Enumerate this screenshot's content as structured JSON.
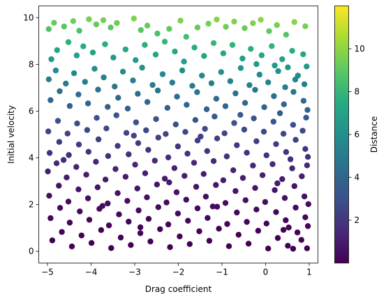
{
  "chart_data": {
    "type": "scatter",
    "xlabel": "Drag coefficient",
    "ylabel": "Initial velocity",
    "colorbar_label": "Distance",
    "colormap": "viridis",
    "xlim": [
      -5.2,
      1.2
    ],
    "ylim": [
      -0.5,
      10.5
    ],
    "clim": [
      0,
      12
    ],
    "x_ticks": [
      -5,
      -4,
      -3,
      -2,
      -1,
      0,
      1
    ],
    "x_tick_labels": [
      "−5",
      "−4",
      "−3",
      "−2",
      "−1",
      "0",
      "1"
    ],
    "y_ticks": [
      0,
      2,
      4,
      6,
      8,
      10
    ],
    "y_tick_labels": [
      "0",
      "2",
      "4",
      "6",
      "8",
      "10"
    ],
    "colorbar_ticks": [
      2,
      4,
      6,
      8,
      10
    ],
    "colorbar_tick_labels": [
      "2",
      "4",
      "6",
      "8",
      "10"
    ],
    "grid": false,
    "legend": "none",
    "marker_color_encodes": "Distance",
    "marker_edge": "none",
    "points": [
      {
        "x": -4.97,
        "y": 9.51
      },
      {
        "x": -4.85,
        "y": 9.78
      },
      {
        "x": -4.62,
        "y": 9.62
      },
      {
        "x": -4.41,
        "y": 9.85
      },
      {
        "x": -4.27,
        "y": 9.44
      },
      {
        "x": -4.05,
        "y": 9.93
      },
      {
        "x": -3.88,
        "y": 9.71
      },
      {
        "x": -3.72,
        "y": 9.89
      },
      {
        "x": -3.55,
        "y": 9.58
      },
      {
        "x": -3.41,
        "y": 9.77
      },
      {
        "x": -3.02,
        "y": 9.96
      },
      {
        "x": -2.86,
        "y": 9.47
      },
      {
        "x": -2.71,
        "y": 9.66
      },
      {
        "x": -2.48,
        "y": 9.32
      },
      {
        "x": -2.21,
        "y": 9.52
      },
      {
        "x": -1.95,
        "y": 9.87
      },
      {
        "x": -1.82,
        "y": 9.18
      },
      {
        "x": -1.56,
        "y": 9.58
      },
      {
        "x": -1.31,
        "y": 9.74
      },
      {
        "x": -1.12,
        "y": 9.92
      },
      {
        "x": -0.91,
        "y": 9.61
      },
      {
        "x": -0.72,
        "y": 9.83
      },
      {
        "x": -0.48,
        "y": 9.55
      },
      {
        "x": -0.29,
        "y": 9.76
      },
      {
        "x": -0.11,
        "y": 9.91
      },
      {
        "x": 0.08,
        "y": 9.42
      },
      {
        "x": 0.26,
        "y": 9.68
      },
      {
        "x": 0.47,
        "y": 9.27
      },
      {
        "x": 0.66,
        "y": 9.81
      },
      {
        "x": 0.91,
        "y": 9.63
      },
      {
        "x": -4.91,
        "y": 8.22
      },
      {
        "x": -4.78,
        "y": 8.61
      },
      {
        "x": -4.52,
        "y": 8.95
      },
      {
        "x": -4.33,
        "y": 8.38
      },
      {
        "x": -4.18,
        "y": 8.77
      },
      {
        "x": -3.96,
        "y": 8.51
      },
      {
        "x": -3.68,
        "y": 8.86
      },
      {
        "x": -3.49,
        "y": 8.29
      },
      {
        "x": -3.21,
        "y": 8.64
      },
      {
        "x": -2.98,
        "y": 8.18
      },
      {
        "x": -2.77,
        "y": 8.83
      },
      {
        "x": -2.52,
        "y": 8.42
      },
      {
        "x": -2.31,
        "y": 8.97
      },
      {
        "x": -2.08,
        "y": 8.55
      },
      {
        "x": -1.87,
        "y": 8.12
      },
      {
        "x": -1.63,
        "y": 8.72
      },
      {
        "x": -1.41,
        "y": 8.36
      },
      {
        "x": -1.19,
        "y": 8.91
      },
      {
        "x": -0.97,
        "y": 8.47
      },
      {
        "x": -0.76,
        "y": 8.83
      },
      {
        "x": -0.53,
        "y": 8.25
      },
      {
        "x": -0.34,
        "y": 8.66
      },
      {
        "x": -0.09,
        "y": 8.39
      },
      {
        "x": 0.14,
        "y": 8.78
      },
      {
        "x": 0.38,
        "y": 8.22
      },
      {
        "x": 0.61,
        "y": 8.58
      },
      {
        "x": 0.86,
        "y": 8.43
      },
      {
        "x": 0.94,
        "y": 7.91
      },
      {
        "x": 0.74,
        "y": 7.52
      },
      {
        "x": 0.51,
        "y": 7.87
      },
      {
        "x": -4.97,
        "y": 7.36
      },
      {
        "x": -4.81,
        "y": 7.74
      },
      {
        "x": -4.58,
        "y": 7.18
      },
      {
        "x": -4.39,
        "y": 7.62
      },
      {
        "x": -4.14,
        "y": 7.25
      },
      {
        "x": -3.92,
        "y": 7.81
      },
      {
        "x": -3.71,
        "y": 7.44
      },
      {
        "x": -3.46,
        "y": 7.05
      },
      {
        "x": -3.27,
        "y": 7.69
      },
      {
        "x": -3.04,
        "y": 7.31
      },
      {
        "x": -2.83,
        "y": 7.86
      },
      {
        "x": -2.59,
        "y": 7.12
      },
      {
        "x": -2.36,
        "y": 7.58
      },
      {
        "x": -2.14,
        "y": 7.22
      },
      {
        "x": -1.91,
        "y": 7.74
      },
      {
        "x": -1.68,
        "y": 7.08
      },
      {
        "x": -1.46,
        "y": 7.52
      },
      {
        "x": -1.24,
        "y": 7.19
      },
      {
        "x": -1.02,
        "y": 7.67
      },
      {
        "x": -0.81,
        "y": 7.28
      },
      {
        "x": -0.57,
        "y": 7.84
      },
      {
        "x": -0.37,
        "y": 7.11
      },
      {
        "x": -0.14,
        "y": 7.56
      },
      {
        "x": 0.06,
        "y": 7.23
      },
      {
        "x": 0.29,
        "y": 7.71
      },
      {
        "x": 0.45,
        "y": 7.02
      },
      {
        "x": 0.68,
        "y": 7.35
      },
      {
        "x": 0.89,
        "y": 7.15
      },
      {
        "x": 0.21,
        "y": 7.95
      },
      {
        "x": -0.21,
        "y": 8.01
      },
      {
        "x": -4.93,
        "y": 6.47
      },
      {
        "x": -4.72,
        "y": 6.85
      },
      {
        "x": -4.49,
        "y": 6.22
      },
      {
        "x": -4.29,
        "y": 6.71
      },
      {
        "x": -4.07,
        "y": 6.33
      },
      {
        "x": -3.84,
        "y": 6.92
      },
      {
        "x": -3.62,
        "y": 6.18
      },
      {
        "x": -3.38,
        "y": 6.57
      },
      {
        "x": -3.16,
        "y": 6.11
      },
      {
        "x": -2.93,
        "y": 6.74
      },
      {
        "x": -2.71,
        "y": 6.39
      },
      {
        "x": -2.47,
        "y": 6.88
      },
      {
        "x": -2.25,
        "y": 6.14
      },
      {
        "x": -2.03,
        "y": 6.62
      },
      {
        "x": -1.81,
        "y": 6.27
      },
      {
        "x": -1.57,
        "y": 6.81
      },
      {
        "x": -1.35,
        "y": 6.08
      },
      {
        "x": -1.13,
        "y": 6.53
      },
      {
        "x": -0.92,
        "y": 6.21
      },
      {
        "x": -0.69,
        "y": 6.76
      },
      {
        "x": -0.47,
        "y": 6.35
      },
      {
        "x": -0.24,
        "y": 6.91
      },
      {
        "x": -0.03,
        "y": 6.17
      },
      {
        "x": 0.19,
        "y": 6.64
      },
      {
        "x": 0.42,
        "y": 6.29
      },
      {
        "x": 0.64,
        "y": 6.82
      },
      {
        "x": 0.87,
        "y": 6.44
      },
      {
        "x": 0.96,
        "y": 6.05
      },
      {
        "x": 0.33,
        "y": 5.91
      },
      {
        "x": -0.58,
        "y": 5.84
      },
      {
        "x": -4.98,
        "y": 5.13
      },
      {
        "x": -4.76,
        "y": 5.58
      },
      {
        "x": -4.54,
        "y": 5.04
      },
      {
        "x": -4.32,
        "y": 5.47
      },
      {
        "x": -4.09,
        "y": 5.19
      },
      {
        "x": -3.87,
        "y": 5.71
      },
      {
        "x": -3.65,
        "y": 5.26
      },
      {
        "x": -3.42,
        "y": 5.82
      },
      {
        "x": -3.19,
        "y": 5.07
      },
      {
        "x": -2.97,
        "y": 5.52
      },
      {
        "x": -2.74,
        "y": 5.18
      },
      {
        "x": -2.51,
        "y": 5.66
      },
      {
        "x": -2.29,
        "y": 5.02
      },
      {
        "x": -2.06,
        "y": 5.43
      },
      {
        "x": -1.84,
        "y": 5.11
      },
      {
        "x": -1.61,
        "y": 5.62
      },
      {
        "x": -1.39,
        "y": 5.24
      },
      {
        "x": -1.17,
        "y": 5.77
      },
      {
        "x": -0.94,
        "y": 5.05
      },
      {
        "x": -0.72,
        "y": 5.49
      },
      {
        "x": -0.49,
        "y": 5.21
      },
      {
        "x": -0.27,
        "y": 5.69
      },
      {
        "x": -0.04,
        "y": 5.12
      },
      {
        "x": 0.18,
        "y": 5.55
      },
      {
        "x": 0.41,
        "y": 5.03
      },
      {
        "x": 0.63,
        "y": 5.41
      },
      {
        "x": 0.85,
        "y": 5.16
      },
      {
        "x": 0.93,
        "y": 5.72
      },
      {
        "x": -3.02,
        "y": 4.95
      },
      {
        "x": -1.49,
        "y": 4.91
      },
      {
        "x": -4.95,
        "y": 4.21
      },
      {
        "x": -4.73,
        "y": 4.68
      },
      {
        "x": -4.51,
        "y": 4.12
      },
      {
        "x": -4.28,
        "y": 4.57
      },
      {
        "x": -4.06,
        "y": 4.26
      },
      {
        "x": -3.83,
        "y": 4.79
      },
      {
        "x": -3.61,
        "y": 4.08
      },
      {
        "x": -3.39,
        "y": 4.51
      },
      {
        "x": -3.14,
        "y": 4.15
      },
      {
        "x": -2.92,
        "y": 4.63
      },
      {
        "x": -2.69,
        "y": 4.34
      },
      {
        "x": -2.46,
        "y": 4.87
      },
      {
        "x": -2.23,
        "y": 4.02
      },
      {
        "x": -2.01,
        "y": 4.49
      },
      {
        "x": -1.79,
        "y": 4.18
      },
      {
        "x": -1.56,
        "y": 4.74
      },
      {
        "x": -1.34,
        "y": 4.29
      },
      {
        "x": -1.11,
        "y": 4.83
      },
      {
        "x": -0.89,
        "y": 4.06
      },
      {
        "x": -0.66,
        "y": 4.54
      },
      {
        "x": -0.43,
        "y": 4.22
      },
      {
        "x": -0.21,
        "y": 4.71
      },
      {
        "x": 0.02,
        "y": 4.11
      },
      {
        "x": 0.24,
        "y": 4.59
      },
      {
        "x": 0.47,
        "y": 4.25
      },
      {
        "x": 0.69,
        "y": 4.77
      },
      {
        "x": 0.91,
        "y": 4.38
      },
      {
        "x": 0.97,
        "y": 4.04
      },
      {
        "x": -4.63,
        "y": 3.91
      },
      {
        "x": 0.57,
        "y": 3.94
      },
      {
        "x": -4.99,
        "y": 3.42
      },
      {
        "x": -4.79,
        "y": 3.77
      },
      {
        "x": -4.56,
        "y": 3.16
      },
      {
        "x": -4.34,
        "y": 3.61
      },
      {
        "x": -4.11,
        "y": 3.28
      },
      {
        "x": -3.89,
        "y": 3.83
      },
      {
        "x": -3.67,
        "y": 3.07
      },
      {
        "x": -3.44,
        "y": 3.52
      },
      {
        "x": -3.21,
        "y": 3.19
      },
      {
        "x": -2.99,
        "y": 3.71
      },
      {
        "x": -2.76,
        "y": 3.34
      },
      {
        "x": -2.54,
        "y": 3.88
      },
      {
        "x": -2.31,
        "y": 3.11
      },
      {
        "x": -2.09,
        "y": 3.56
      },
      {
        "x": -1.86,
        "y": 3.23
      },
      {
        "x": -1.64,
        "y": 3.79
      },
      {
        "x": -1.42,
        "y": 3.31
      },
      {
        "x": -1.19,
        "y": 3.86
      },
      {
        "x": -0.97,
        "y": 3.04
      },
      {
        "x": -0.74,
        "y": 3.47
      },
      {
        "x": -0.52,
        "y": 3.14
      },
      {
        "x": -0.29,
        "y": 3.67
      },
      {
        "x": -0.07,
        "y": 3.26
      },
      {
        "x": 0.16,
        "y": 3.73
      },
      {
        "x": 0.38,
        "y": 3.09
      },
      {
        "x": 0.61,
        "y": 3.55
      },
      {
        "x": 0.83,
        "y": 3.21
      },
      {
        "x": 0.95,
        "y": 3.68
      },
      {
        "x": -2.21,
        "y": 2.95
      },
      {
        "x": 0.27,
        "y": 2.91
      },
      {
        "x": -4.96,
        "y": 2.38
      },
      {
        "x": -4.74,
        "y": 2.81
      },
      {
        "x": -4.52,
        "y": 2.13
      },
      {
        "x": -4.29,
        "y": 2.65
      },
      {
        "x": -4.07,
        "y": 2.27
      },
      {
        "x": -3.85,
        "y": 2.74
      },
      {
        "x": -3.62,
        "y": 2.05
      },
      {
        "x": -3.39,
        "y": 2.49
      },
      {
        "x": -3.17,
        "y": 2.16
      },
      {
        "x": -2.94,
        "y": 2.69
      },
      {
        "x": -2.72,
        "y": 2.31
      },
      {
        "x": -2.49,
        "y": 2.86
      },
      {
        "x": -2.27,
        "y": 2.09
      },
      {
        "x": -2.04,
        "y": 2.53
      },
      {
        "x": -1.82,
        "y": 2.21
      },
      {
        "x": -1.59,
        "y": 2.76
      },
      {
        "x": -1.37,
        "y": 2.34
      },
      {
        "x": -1.14,
        "y": 2.84
      },
      {
        "x": -0.92,
        "y": 2.07
      },
      {
        "x": -0.69,
        "y": 2.58
      },
      {
        "x": -0.46,
        "y": 2.19
      },
      {
        "x": -0.24,
        "y": 2.71
      },
      {
        "x": -0.01,
        "y": 2.11
      },
      {
        "x": 0.21,
        "y": 2.62
      },
      {
        "x": 0.44,
        "y": 2.28
      },
      {
        "x": 0.66,
        "y": 2.79
      },
      {
        "x": 0.89,
        "y": 2.35
      },
      {
        "x": 0.98,
        "y": 2.02
      },
      {
        "x": -3.74,
        "y": 1.94
      },
      {
        "x": -1.21,
        "y": 1.92
      },
      {
        "x": -4.93,
        "y": 1.42
      },
      {
        "x": -4.71,
        "y": 1.86
      },
      {
        "x": -4.49,
        "y": 1.23
      },
      {
        "x": -4.26,
        "y": 1.71
      },
      {
        "x": -4.04,
        "y": 1.35
      },
      {
        "x": -3.81,
        "y": 1.82
      },
      {
        "x": -3.59,
        "y": 1.11
      },
      {
        "x": -3.36,
        "y": 1.58
      },
      {
        "x": -3.14,
        "y": 1.27
      },
      {
        "x": -2.91,
        "y": 1.75
      },
      {
        "x": -2.68,
        "y": 1.39
      },
      {
        "x": -2.46,
        "y": 1.89
      },
      {
        "x": -2.23,
        "y": 1.15
      },
      {
        "x": -2.01,
        "y": 1.62
      },
      {
        "x": -1.78,
        "y": 1.31
      },
      {
        "x": -1.56,
        "y": 1.84
      },
      {
        "x": -1.33,
        "y": 1.43
      },
      {
        "x": -1.11,
        "y": 1.91
      },
      {
        "x": -0.88,
        "y": 1.17
      },
      {
        "x": -0.66,
        "y": 1.66
      },
      {
        "x": -0.43,
        "y": 1.26
      },
      {
        "x": -0.21,
        "y": 1.79
      },
      {
        "x": 0.02,
        "y": 1.19
      },
      {
        "x": 0.24,
        "y": 1.68
      },
      {
        "x": 0.46,
        "y": 1.33
      },
      {
        "x": 0.69,
        "y": 1.87
      },
      {
        "x": 0.91,
        "y": 1.46
      },
      {
        "x": 0.97,
        "y": 1.08
      },
      {
        "x": 0.53,
        "y": 1.02
      },
      {
        "x": -2.87,
        "y": 1.03
      },
      {
        "x": -4.89,
        "y": 0.47
      },
      {
        "x": -4.67,
        "y": 0.83
      },
      {
        "x": -4.44,
        "y": 0.21
      },
      {
        "x": -4.22,
        "y": 0.68
      },
      {
        "x": -3.99,
        "y": 0.36
      },
      {
        "x": -3.77,
        "y": 0.91
      },
      {
        "x": -3.54,
        "y": 0.14
      },
      {
        "x": -3.32,
        "y": 0.59
      },
      {
        "x": -3.09,
        "y": 0.27
      },
      {
        "x": -2.87,
        "y": 0.78
      },
      {
        "x": -2.64,
        "y": 0.42
      },
      {
        "x": -2.42,
        "y": 0.95
      },
      {
        "x": -2.19,
        "y": 0.18
      },
      {
        "x": -1.97,
        "y": 0.64
      },
      {
        "x": -1.74,
        "y": 0.31
      },
      {
        "x": -1.52,
        "y": 0.86
      },
      {
        "x": -1.29,
        "y": 0.45
      },
      {
        "x": -1.07,
        "y": 0.97
      },
      {
        "x": -0.84,
        "y": 0.22
      },
      {
        "x": -0.62,
        "y": 0.71
      },
      {
        "x": -0.39,
        "y": 0.33
      },
      {
        "x": -0.17,
        "y": 0.88
      },
      {
        "x": 0.06,
        "y": 0.12
      },
      {
        "x": 0.28,
        "y": 0.57
      },
      {
        "x": 0.51,
        "y": 0.24
      },
      {
        "x": 0.73,
        "y": 0.81
      },
      {
        "x": 0.95,
        "y": 0.13
      },
      {
        "x": 0.82,
        "y": 0.49
      },
      {
        "x": 0.63,
        "y": 0.11
      },
      {
        "x": 0.41,
        "y": 0.92
      }
    ]
  }
}
